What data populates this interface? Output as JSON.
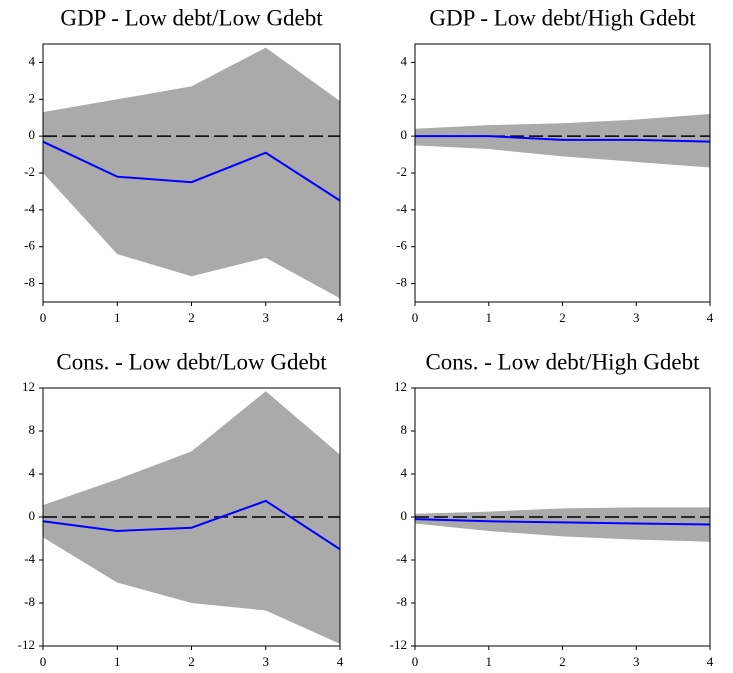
{
  "chart_data": [
    {
      "type": "line",
      "title": "GDP - Low debt/Low Gdebt",
      "x": [
        0,
        1,
        2,
        3,
        4
      ],
      "xlim": [
        0,
        4
      ],
      "xticks": [
        0,
        1,
        2,
        3,
        4
      ],
      "ylim": [
        -9,
        5
      ],
      "yticks": [
        -8,
        -6,
        -4,
        -2,
        0,
        2,
        4
      ],
      "color": "#0000ff",
      "band_color": "#aaaaaa",
      "reference_line": 0,
      "values": [
        -0.3,
        -2.2,
        -2.5,
        -0.9,
        -3.5
      ],
      "upper": [
        1.3,
        2.0,
        2.7,
        4.8,
        1.9
      ],
      "lower": [
        -2.0,
        -6.4,
        -7.6,
        -6.6,
        -8.8
      ]
    },
    {
      "type": "line",
      "title": "GDP - Low debt/High Gdebt",
      "x": [
        0,
        1,
        2,
        3,
        4
      ],
      "xlim": [
        0,
        4
      ],
      "xticks": [
        0,
        1,
        2,
        3,
        4
      ],
      "ylim": [
        -9,
        5
      ],
      "yticks": [
        -8,
        -6,
        -4,
        -2,
        0,
        2,
        4
      ],
      "color": "#0000ff",
      "band_color": "#aaaaaa",
      "reference_line": 0,
      "values": [
        0,
        0,
        -0.2,
        -0.2,
        -0.3
      ],
      "upper": [
        0.4,
        0.6,
        0.7,
        0.9,
        1.2
      ],
      "lower": [
        -0.5,
        -0.7,
        -1.1,
        -1.4,
        -1.7
      ]
    },
    {
      "type": "line",
      "title": "Cons. - Low debt/Low Gdebt",
      "x": [
        0,
        1,
        2,
        3,
        4
      ],
      "xlim": [
        0,
        4
      ],
      "xticks": [
        0,
        1,
        2,
        3,
        4
      ],
      "ylim": [
        -12,
        12
      ],
      "yticks": [
        -12,
        -8,
        -4,
        0,
        4,
        8,
        12
      ],
      "color": "#0000ff",
      "band_color": "#aaaaaa",
      "reference_line": 0,
      "values": [
        -0.4,
        -1.3,
        -1.0,
        1.5,
        -3.0
      ],
      "upper": [
        1.1,
        3.5,
        6.1,
        11.7,
        5.8
      ],
      "lower": [
        -1.9,
        -6.1,
        -8.0,
        -8.7,
        -11.8
      ]
    },
    {
      "type": "line",
      "title": "Cons. - Low debt/High Gdebt",
      "x": [
        0,
        1,
        2,
        3,
        4
      ],
      "xlim": [
        0,
        4
      ],
      "xticks": [
        0,
        1,
        2,
        3,
        4
      ],
      "ylim": [
        -12,
        12
      ],
      "yticks": [
        -12,
        -8,
        -4,
        0,
        4,
        8,
        12
      ],
      "color": "#0000ff",
      "band_color": "#aaaaaa",
      "reference_line": 0,
      "values": [
        -0.2,
        -0.4,
        -0.5,
        -0.6,
        -0.7
      ],
      "upper": [
        0.3,
        0.5,
        0.8,
        0.9,
        0.9
      ],
      "lower": [
        -0.6,
        -1.3,
        -1.8,
        -2.1,
        -2.3
      ]
    }
  ]
}
